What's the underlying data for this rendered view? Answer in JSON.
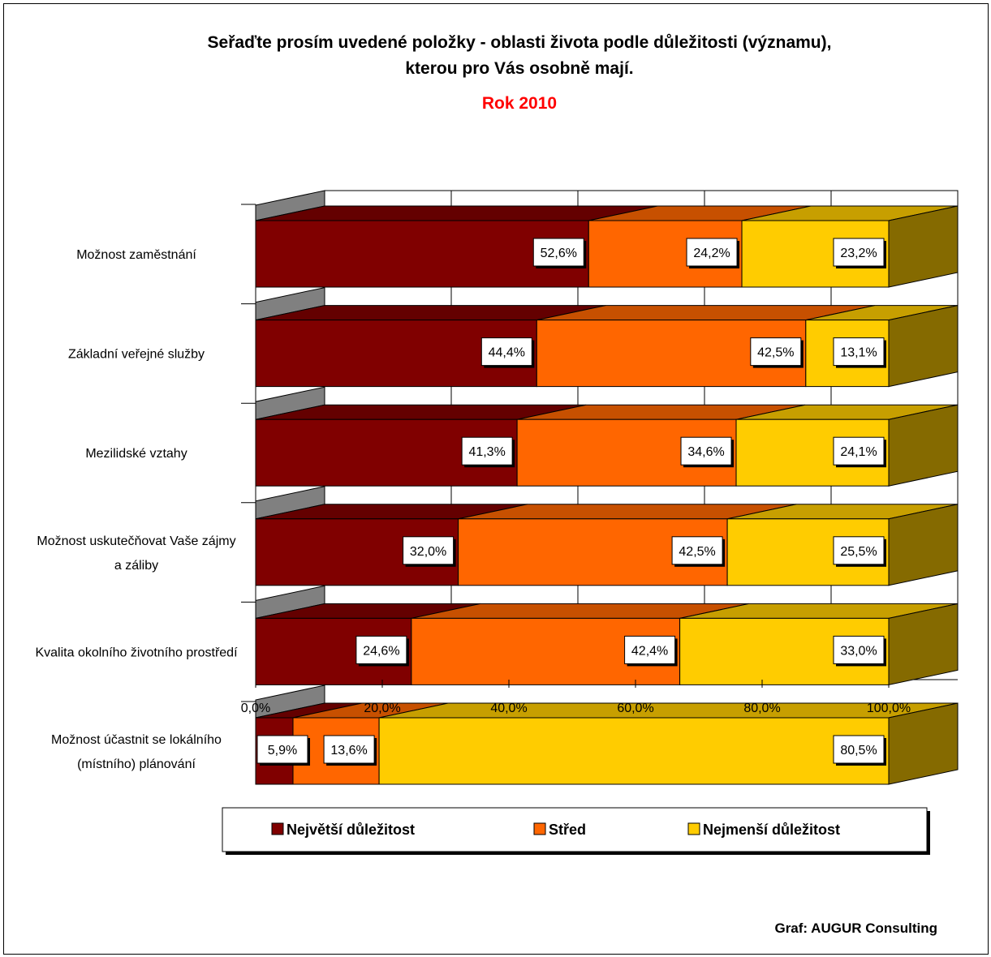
{
  "chart_data": {
    "type": "bar",
    "stacked": true,
    "orientation": "horizontal",
    "three_d": true,
    "title_lines": [
      "Seřaďte prosím uvedené položky - oblasti života podle důležitosti (významu),",
      "kterou pro Vás osobně mají."
    ],
    "subtitle": "Rok 2010",
    "categories": [
      [
        "Možnost zaměstnání"
      ],
      [
        "Základní veřejné služby"
      ],
      [
        "Mezilidské vztahy"
      ],
      [
        "Možnost uskutečňovat Vaše zájmy",
        "a záliby"
      ],
      [
        "Kvalita okolního životního prostředí"
      ],
      [
        "Možnost účastnit se lokálního",
        "(místního) plánování"
      ]
    ],
    "series": [
      {
        "name": "Největší důležitost",
        "color": "#800000",
        "values": [
          52.6,
          44.4,
          41.3,
          32.0,
          24.6,
          5.9
        ],
        "labels": [
          "52,6%",
          "44,4%",
          "41,3%",
          "32,0%",
          "24,6%",
          "5,9%"
        ]
      },
      {
        "name": "Střed",
        "color": "#ff6600",
        "values": [
          24.2,
          42.5,
          34.6,
          42.5,
          42.4,
          13.6
        ],
        "labels": [
          "24,2%",
          "42,5%",
          "34,6%",
          "42,5%",
          "42,4%",
          "13,6%"
        ]
      },
      {
        "name": "Nejmenší důležitost",
        "color": "#ffcc00",
        "values": [
          23.2,
          13.1,
          24.1,
          25.5,
          33.0,
          80.5
        ],
        "labels": [
          "23,2%",
          "13,1%",
          "24,1%",
          "25,5%",
          "33,0%",
          "80,5%"
        ]
      }
    ],
    "xlim": [
      0,
      100
    ],
    "x_ticks": [
      0,
      20,
      40,
      60,
      80,
      100
    ],
    "x_tick_labels": [
      "0,0%",
      "20,0%",
      "40,0%",
      "60,0%",
      "80,0%",
      "100,0%"
    ],
    "grid": true,
    "legend_position": "bottom"
  },
  "footer": {
    "credit": "Graf: AUGUR Consulting"
  }
}
